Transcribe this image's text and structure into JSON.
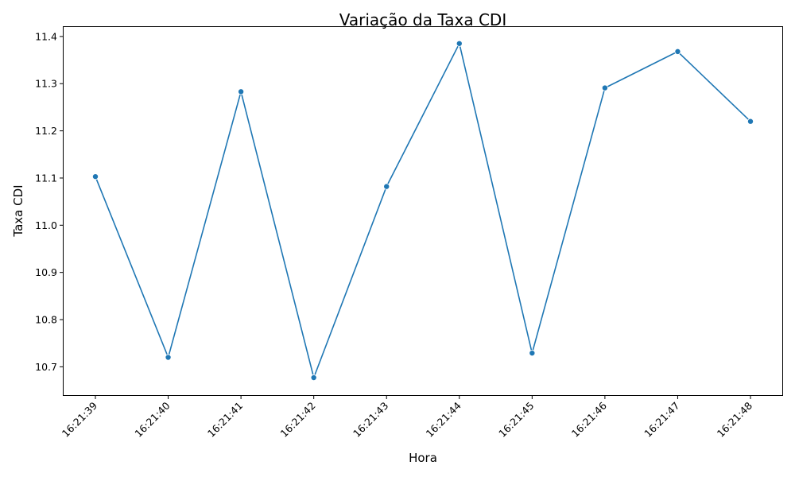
{
  "chart_data": {
    "type": "line",
    "title": "Variação da Taxa CDI",
    "xlabel": "Hora",
    "ylabel": "Taxa CDI",
    "categories": [
      "16:21:39",
      "16:21:40",
      "16:21:41",
      "16:21:42",
      "16:21:43",
      "16:21:44",
      "16:21:45",
      "16:21:46",
      "16:21:47",
      "16:21:48"
    ],
    "series": [
      {
        "values": [
          11.103,
          10.72,
          11.283,
          10.677,
          11.082,
          11.385,
          10.729,
          11.291,
          11.368,
          11.22
        ],
        "color": "#1f77b4"
      }
    ],
    "ylim": [
      10.64,
      11.42
    ],
    "yticks": [
      "10.7",
      "10.8",
      "10.9",
      "11.0",
      "11.1",
      "11.2",
      "11.3",
      "11.4"
    ],
    "grid": false,
    "legend": "none"
  }
}
